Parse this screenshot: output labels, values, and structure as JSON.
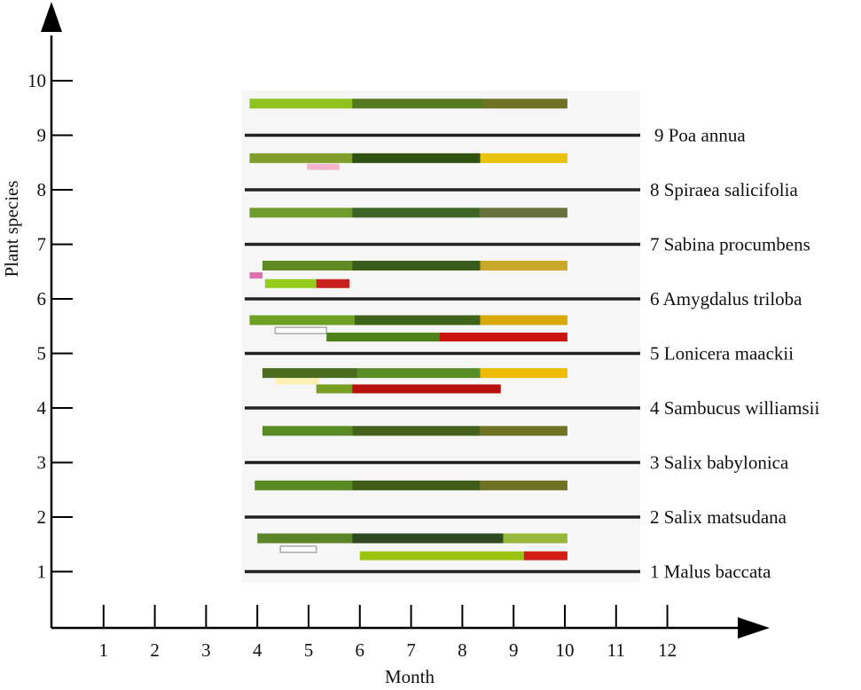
{
  "chart_data": {
    "type": "gantt-timeline",
    "title": "",
    "xlabel": "Month",
    "ylabel": "Plant species",
    "x_ticks": [
      "1",
      "2",
      "3",
      "4",
      "5",
      "6",
      "7",
      "8",
      "9",
      "10",
      "11",
      "12"
    ],
    "y_ticks": [
      "1",
      "2",
      "3",
      "4",
      "5",
      "6",
      "7",
      "8",
      "9",
      "10"
    ],
    "xlim": [
      0,
      13.5
    ],
    "ylim": [
      0,
      11
    ],
    "grid": false,
    "species": [
      {
        "id": 1,
        "label": "1 Malus baccata"
      },
      {
        "id": 2,
        "label": "2 Salix matsudana"
      },
      {
        "id": 3,
        "label": "3 Salix babylonica"
      },
      {
        "id": 4,
        "label": "4 Sambucus williamsii"
      },
      {
        "id": 5,
        "label": "5 Lonicera maackii"
      },
      {
        "id": 6,
        "label": "6 Amygdalus triloba"
      },
      {
        "id": 7,
        "label": "7 Sabina procumbens"
      },
      {
        "id": 8,
        "label": "8 Spiraea salicifolia"
      },
      {
        "id": 9,
        "label": "9 Poa annua"
      }
    ],
    "bars": [
      {
        "species": 9,
        "row": "leaf",
        "segments": [
          {
            "start": 3.85,
            "end": 5.85,
            "color": "#8ec21f"
          },
          {
            "start": 5.85,
            "end": 8.4,
            "color": "#557a22"
          },
          {
            "start": 8.4,
            "end": 10.05,
            "color": "#6e7222"
          }
        ]
      },
      {
        "species": 8,
        "row": "leaf",
        "segments": [
          {
            "start": 3.85,
            "end": 5.85,
            "color": "#7f9e2e"
          },
          {
            "start": 5.85,
            "end": 8.35,
            "color": "#2f5212"
          },
          {
            "start": 8.35,
            "end": 10.05,
            "color": "#e8c20c"
          }
        ]
      },
      {
        "species": 8,
        "row": "flower",
        "segments": [
          {
            "start": 4.97,
            "end": 5.6,
            "color": "#f4b6cc"
          }
        ]
      },
      {
        "species": 7,
        "row": "leaf",
        "segments": [
          {
            "start": 3.85,
            "end": 5.85,
            "color": "#6f9a2c"
          },
          {
            "start": 5.85,
            "end": 8.35,
            "color": "#3e6428"
          },
          {
            "start": 8.35,
            "end": 10.05,
            "color": "#6a6f3e"
          }
        ]
      },
      {
        "species": 6,
        "row": "leaf",
        "segments": [
          {
            "start": 4.1,
            "end": 5.85,
            "color": "#5f8a24"
          },
          {
            "start": 5.85,
            "end": 8.35,
            "color": "#3a5c1a"
          },
          {
            "start": 8.35,
            "end": 10.05,
            "color": "#c9a82a"
          }
        ]
      },
      {
        "species": 6,
        "row": "flower",
        "segments": [
          {
            "start": 3.85,
            "end": 4.1,
            "color": "#e06fb0"
          }
        ]
      },
      {
        "species": 6,
        "row": "fruit",
        "segments": [
          {
            "start": 4.15,
            "end": 5.15,
            "color": "#94cc1e"
          },
          {
            "start": 5.15,
            "end": 5.8,
            "color": "#c8201c"
          }
        ]
      },
      {
        "species": 5,
        "row": "leaf",
        "segments": [
          {
            "start": 3.85,
            "end": 5.9,
            "color": "#6fa024"
          },
          {
            "start": 5.9,
            "end": 8.35,
            "color": "#3f6418"
          },
          {
            "start": 8.35,
            "end": 10.05,
            "color": "#d8aa08"
          }
        ]
      },
      {
        "species": 5,
        "row": "flower",
        "segments": [
          {
            "start": 4.35,
            "end": 5.35,
            "color": "#ffffff",
            "outline": "#aaaaaa"
          }
        ]
      },
      {
        "species": 5,
        "row": "fruit",
        "segments": [
          {
            "start": 5.35,
            "end": 7.55,
            "color": "#4c8218"
          },
          {
            "start": 7.55,
            "end": 10.05,
            "color": "#c8140c"
          }
        ]
      },
      {
        "species": 4,
        "row": "leaf",
        "segments": [
          {
            "start": 4.1,
            "end": 5.95,
            "color": "#4a6c1c"
          },
          {
            "start": 5.95,
            "end": 8.35,
            "color": "#5a8c26"
          },
          {
            "start": 8.35,
            "end": 10.05,
            "color": "#eebb08"
          }
        ]
      },
      {
        "species": 4,
        "row": "flower",
        "segments": [
          {
            "start": 4.35,
            "end": 5.2,
            "color": "#fbf0b0"
          }
        ]
      },
      {
        "species": 4,
        "row": "fruit",
        "segments": [
          {
            "start": 5.15,
            "end": 5.85,
            "color": "#789e22"
          },
          {
            "start": 5.85,
            "end": 8.75,
            "color": "#b8100c"
          }
        ]
      },
      {
        "species": 3,
        "row": "leaf",
        "segments": [
          {
            "start": 4.1,
            "end": 5.85,
            "color": "#5a8a24"
          },
          {
            "start": 5.85,
            "end": 8.35,
            "color": "#44621c"
          },
          {
            "start": 8.35,
            "end": 10.05,
            "color": "#6e7222"
          }
        ]
      },
      {
        "species": 2,
        "row": "leaf",
        "segments": [
          {
            "start": 3.95,
            "end": 5.85,
            "color": "#5a8a24"
          },
          {
            "start": 5.85,
            "end": 8.35,
            "color": "#3f5c18"
          },
          {
            "start": 8.35,
            "end": 10.05,
            "color": "#6e7222"
          }
        ]
      },
      {
        "species": 1,
        "row": "leaf",
        "segments": [
          {
            "start": 4.0,
            "end": 5.85,
            "color": "#5c8428"
          },
          {
            "start": 5.85,
            "end": 8.8,
            "color": "#2e4a1e"
          },
          {
            "start": 8.8,
            "end": 10.05,
            "color": "#97b83a"
          }
        ]
      },
      {
        "species": 1,
        "row": "flower",
        "segments": [
          {
            "start": 4.45,
            "end": 5.15,
            "color": "#ffffff",
            "outline": "#aaaaaa"
          }
        ]
      },
      {
        "species": 1,
        "row": "fruit",
        "segments": [
          {
            "start": 6.0,
            "end": 9.2,
            "color": "#9cc412"
          },
          {
            "start": 9.2,
            "end": 10.05,
            "color": "#d21c14"
          }
        ]
      }
    ],
    "legend": null,
    "annotations": []
  }
}
